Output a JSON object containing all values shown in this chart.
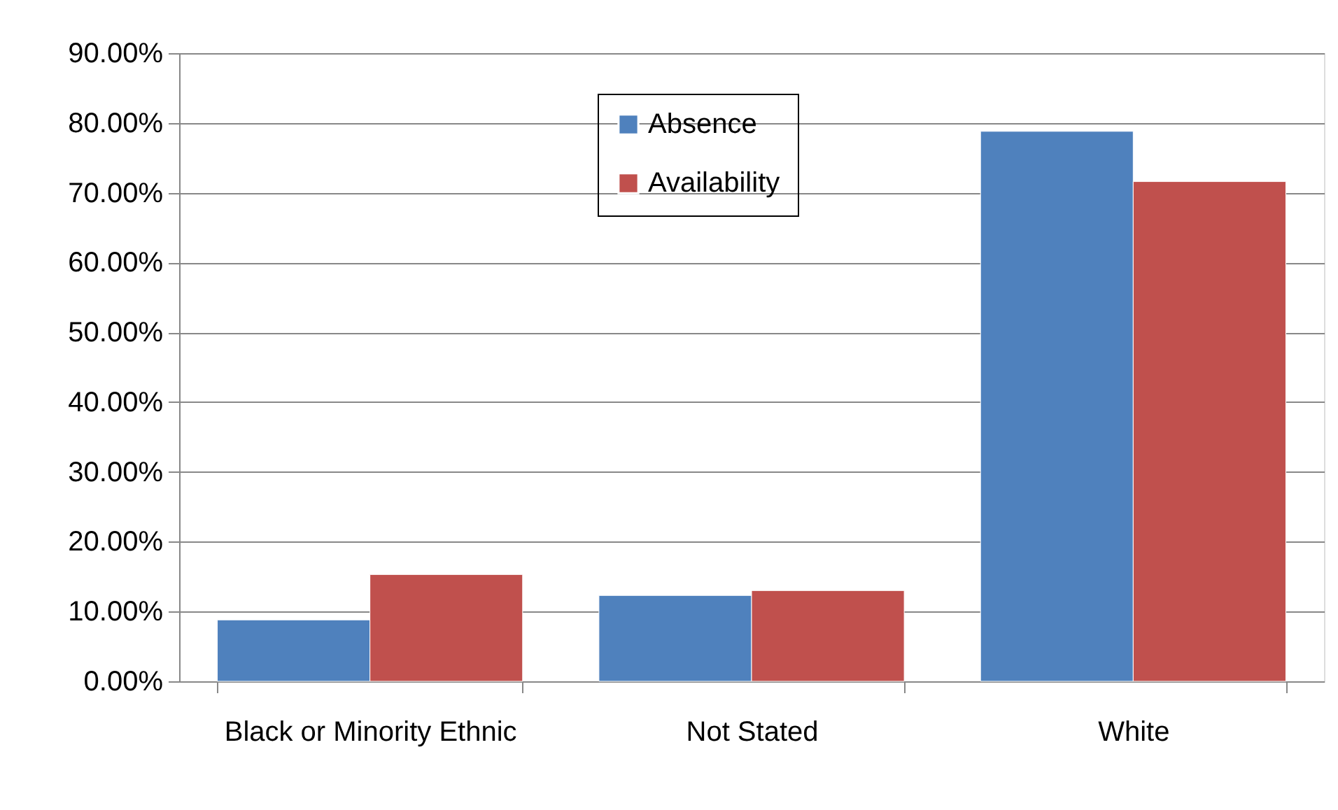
{
  "chart_data": {
    "type": "bar",
    "categories": [
      "Black or Minority Ethnic",
      "Not Stated",
      "White"
    ],
    "series": [
      {
        "name": "Absence",
        "color": "#4f81bd",
        "values": [
          8.8,
          12.3,
          78.8
        ]
      },
      {
        "name": "Availability",
        "color": "#c0504d",
        "values": [
          15.3,
          13.0,
          71.6
        ]
      }
    ],
    "ylim": [
      0,
      90
    ],
    "yticks": [
      {
        "value": 0,
        "label": "0.00%"
      },
      {
        "value": 10,
        "label": "10.00%"
      },
      {
        "value": 20,
        "label": "20.00%"
      },
      {
        "value": 30,
        "label": "30.00%"
      },
      {
        "value": 40,
        "label": "40.00%"
      },
      {
        "value": 50,
        "label": "50.00%"
      },
      {
        "value": 60,
        "label": "60.00%"
      },
      {
        "value": 70,
        "label": "70.00%"
      },
      {
        "value": 80,
        "label": "80.00%"
      },
      {
        "value": 90,
        "label": "90.00%"
      }
    ],
    "grid": "y",
    "legend": "top"
  }
}
